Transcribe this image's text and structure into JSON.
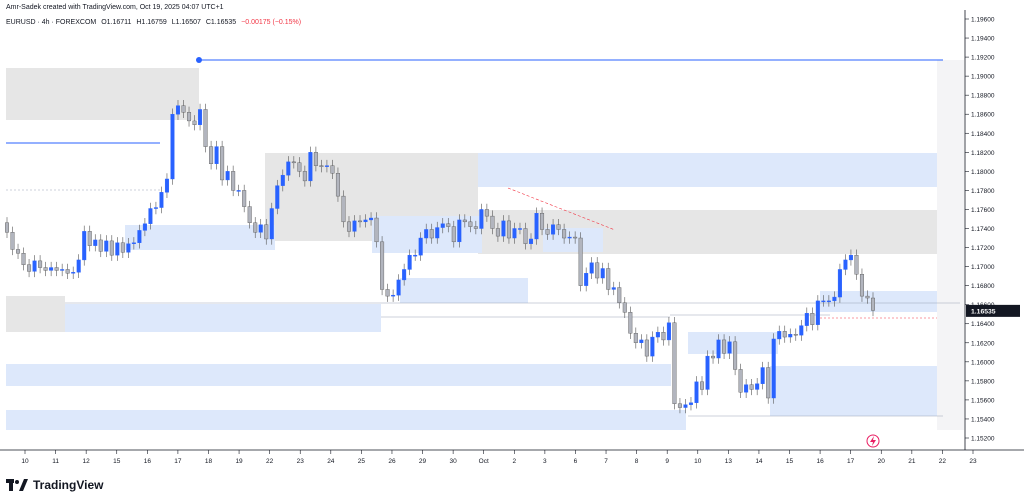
{
  "header": {
    "credit": "Amr-Sadek created with TradingView.com, Oct 19, 2025 04:07 UTC+1",
    "symbol": "EURUSD · 4h · FOREXCOM",
    "open": "O1.16711",
    "high": "H1.16759",
    "low": "L1.16507",
    "close": "C1.16535",
    "change": "−0.00175 (−0.15%)"
  },
  "footer": {
    "brand": "TradingView"
  },
  "colors": {
    "up": "#2962ff",
    "down": "#787b86",
    "level": "#2962ff",
    "zone_blue": "#dde8fb",
    "zone_gray": "#e6e6e6"
  },
  "chart_data": {
    "type": "candlestick",
    "symbol": "EURUSD",
    "interval": "4h",
    "x_ticks": [
      "10",
      "11",
      "12",
      "15",
      "16",
      "17",
      "18",
      "19",
      "22",
      "23",
      "24",
      "25",
      "26",
      "29",
      "30",
      "Oct",
      "2",
      "3",
      "6",
      "7",
      "8",
      "9",
      "10",
      "13",
      "14",
      "15",
      "16",
      "17",
      "20",
      "21",
      "22",
      "23"
    ],
    "y_ticks": [
      "1.19600",
      "1.19400",
      "1.19200",
      "1.19000",
      "1.18800",
      "1.18600",
      "1.18400",
      "1.18200",
      "1.18000",
      "1.17800",
      "1.17600",
      "1.17400",
      "1.17200",
      "1.17000",
      "1.16800",
      "1.16600",
      "1.16400",
      "1.16200",
      "1.16000",
      "1.15800",
      "1.15600",
      "1.15400",
      "1.15200"
    ],
    "ylim": [
      1.1505,
      1.1975
    ],
    "price_label": "1.16535",
    "closes": [
      1.1736,
      1.1718,
      1.1714,
      1.1702,
      1.1695,
      1.1706,
      1.1699,
      1.1696,
      1.1699,
      1.1696,
      1.1697,
      1.1693,
      1.1694,
      1.1707,
      1.1737,
      1.1722,
      1.1728,
      1.1716,
      1.1727,
      1.1712,
      1.1725,
      1.1715,
      1.1724,
      1.1725,
      1.1738,
      1.1745,
      1.1761,
      1.1762,
      1.1778,
      1.1792,
      1.186,
      1.1869,
      1.1862,
      1.1853,
      1.1849,
      1.1865,
      1.1826,
      1.1808,
      1.1826,
      1.1791,
      1.18,
      1.178,
      1.178,
      1.1763,
      1.1746,
      1.1736,
      1.1744,
      1.1729,
      1.1761,
      1.1785,
      1.1796,
      1.181,
      1.1809,
      1.18,
      1.179,
      1.182,
      1.1806,
      1.1805,
      1.1806,
      1.1798,
      1.1774,
      1.1747,
      1.1737,
      1.1748,
      1.1747,
      1.1749,
      1.1751,
      1.1726,
      1.1676,
      1.1669,
      1.167,
      1.1686,
      1.1697,
      1.1712,
      1.1712,
      1.173,
      1.1739,
      1.173,
      1.1741,
      1.1745,
      1.1742,
      1.1726,
      1.1749,
      1.1747,
      1.1742,
      1.174,
      1.176,
      1.1753,
      1.174,
      1.1732,
      1.1748,
      1.173,
      1.174,
      1.174,
      1.1724,
      1.1729,
      1.1756,
      1.1739,
      1.1734,
      1.1744,
      1.1739,
      1.173,
      1.1731,
      1.173,
      1.168,
      1.1693,
      1.1704,
      1.1688,
      1.1698,
      1.1676,
      1.1678,
      1.1662,
      1.1652,
      1.163,
      1.162,
      1.1623,
      1.1606,
      1.1626,
      1.1631,
      1.1623,
      1.1641,
      1.1556,
      1.1552,
      1.1555,
      1.1557,
      1.1579,
      1.1571,
      1.1606,
      1.1604,
      1.1623,
      1.1609,
      1.1621,
      1.1592,
      1.1568,
      1.1576,
      1.1571,
      1.1577,
      1.1594,
      1.1562,
      1.1624,
      1.1632,
      1.1626,
      1.1629,
      1.1628,
      1.1638,
      1.1651,
      1.1639,
      1.1664,
      1.1664,
      1.1664,
      1.1668,
      1.1697,
      1.1707,
      1.1712,
      1.1692,
      1.1669,
      1.1667,
      1.1654
    ]
  }
}
